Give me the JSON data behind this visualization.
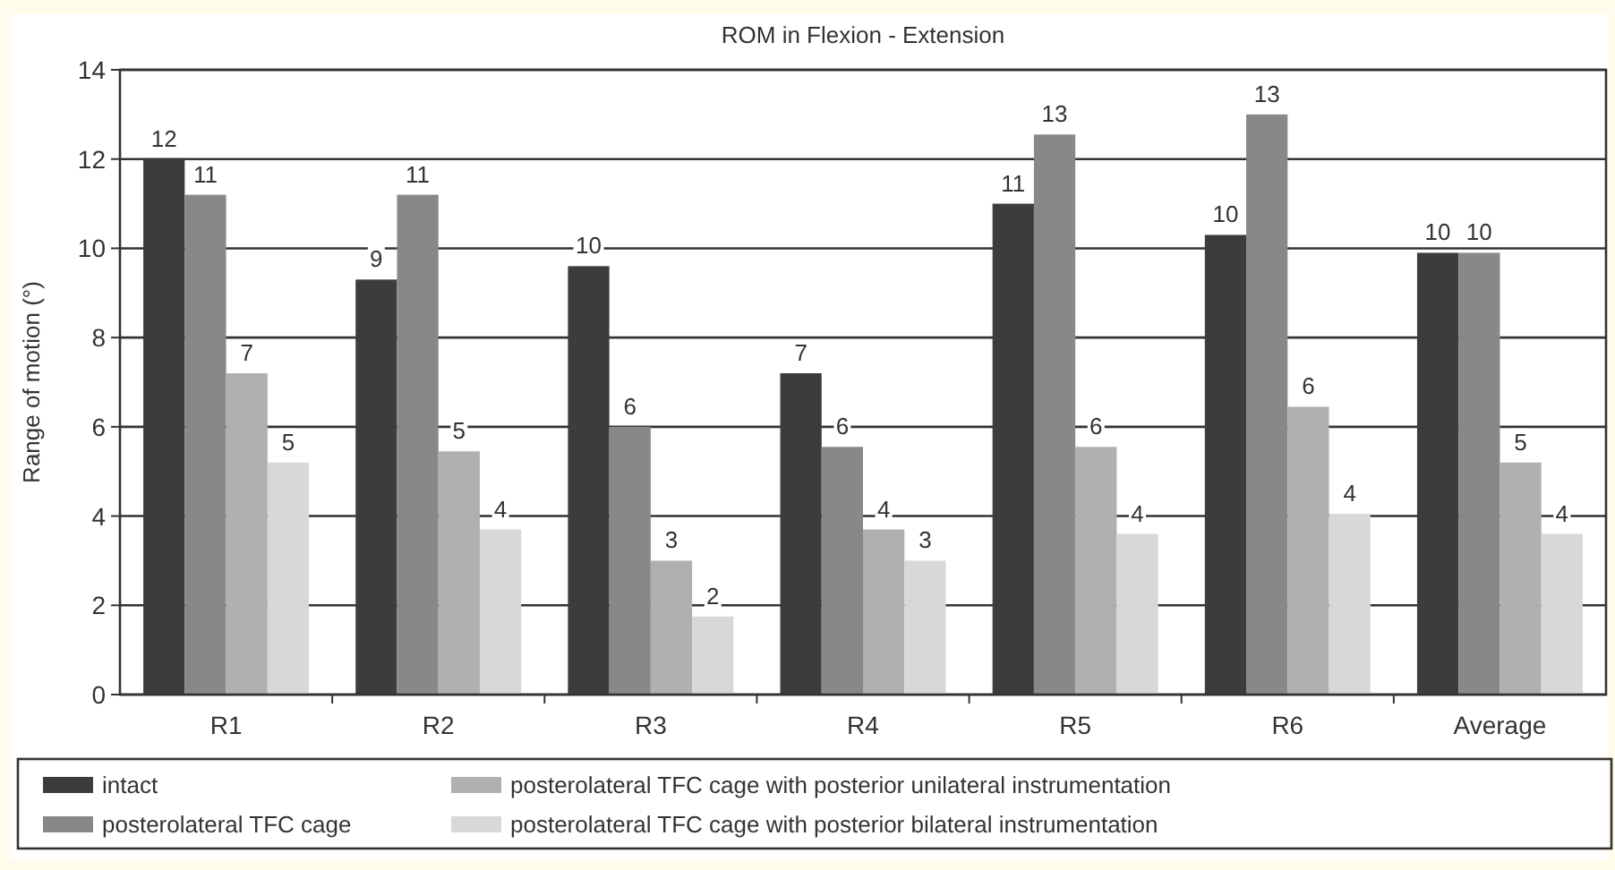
{
  "chart_data": {
    "type": "bar",
    "title": "ROM in Flexion - Extension",
    "ylabel": "Range of motion (°)",
    "categories": [
      "R1",
      "R2",
      "R3",
      "R4",
      "R5",
      "R6",
      "Average"
    ],
    "series": [
      {
        "name": "intact",
        "color": "#3c3c3c",
        "values": [
          12.0,
          9.3,
          9.6,
          7.2,
          11.0,
          10.3,
          9.9
        ],
        "value_labels": [
          "12",
          "9",
          "10",
          "7",
          "11",
          "10",
          "10"
        ]
      },
      {
        "name": "posterolateral TFC cage",
        "color": "#888888",
        "values": [
          11.2,
          11.2,
          6.0,
          5.55,
          12.55,
          13.0,
          9.9
        ],
        "value_labels": [
          "11",
          "11",
          "6",
          "6",
          "13",
          "13",
          "10"
        ]
      },
      {
        "name": "posterolateral TFC cage with posterior unilateral instrumentation",
        "color": "#b0b0b0",
        "values": [
          7.2,
          5.45,
          3.0,
          3.7,
          5.55,
          6.45,
          5.2
        ],
        "value_labels": [
          "7",
          "5",
          "3",
          "4",
          "6",
          "6",
          "5"
        ]
      },
      {
        "name": "posterolateral TFC cage with posterior bilateral instrumentation",
        "color": "#d8d8d8",
        "values": [
          5.2,
          3.7,
          1.75,
          3.0,
          3.6,
          4.05,
          3.6
        ],
        "value_labels": [
          "5",
          "4",
          "2",
          "3",
          "4",
          "4",
          "4"
        ]
      }
    ],
    "ylim": [
      0,
      14
    ],
    "yticks": [
      0,
      2,
      4,
      6,
      8,
      10,
      12,
      14
    ],
    "grid": "y",
    "legend": "bottom"
  }
}
